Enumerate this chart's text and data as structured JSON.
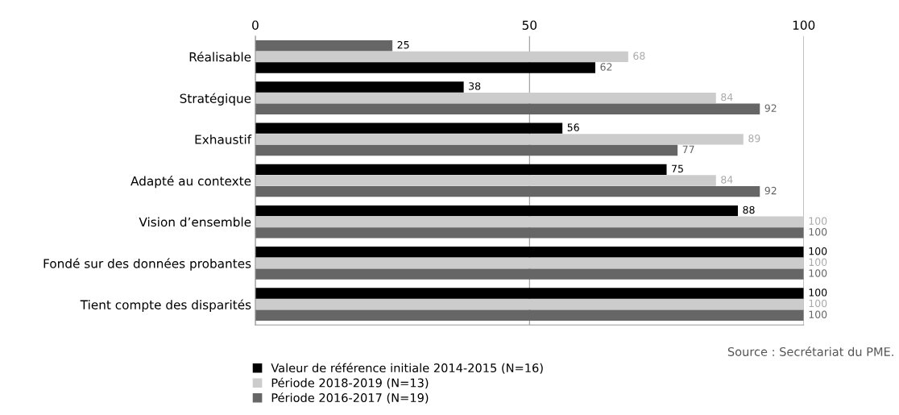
{
  "chart_data": {
    "type": "bar",
    "orientation": "horizontal",
    "categories": [
      "Réalisable",
      "Stratégique",
      "Exhaustif",
      "Adapté au contexte",
      "Vision d’ensemble",
      "Fondé sur des données probantes",
      "Tient compte des disparités"
    ],
    "series": [
      {
        "name": "Valeur de référence initiale 2014-2015 (N=16)",
        "color": "#000000",
        "colors": [
          "#666666",
          "#000000",
          "#000000",
          "#000000",
          "#000000",
          "#000000",
          "#000000"
        ],
        "values": [
          25,
          38,
          56,
          75,
          88,
          100,
          100
        ]
      },
      {
        "name": "Période 2018-2019 (N=13)",
        "color": "#cccccc",
        "values": [
          68,
          84,
          89,
          84,
          100,
          100,
          100
        ]
      },
      {
        "name": "Période 2016-2017 (N=19)",
        "color": "#666666",
        "colors": [
          "#000000",
          "#666666",
          "#666666",
          "#666666",
          "#666666",
          "#666666",
          "#666666"
        ],
        "values": [
          62,
          92,
          77,
          92,
          100,
          100,
          100
        ]
      }
    ],
    "xlim": [
      0,
      100
    ],
    "xticks": [
      0,
      50,
      100
    ],
    "grid": "x",
    "data_labels": true,
    "legend": "bottom left",
    "annotations": [
      "Source : Secrétariat du PME."
    ]
  }
}
